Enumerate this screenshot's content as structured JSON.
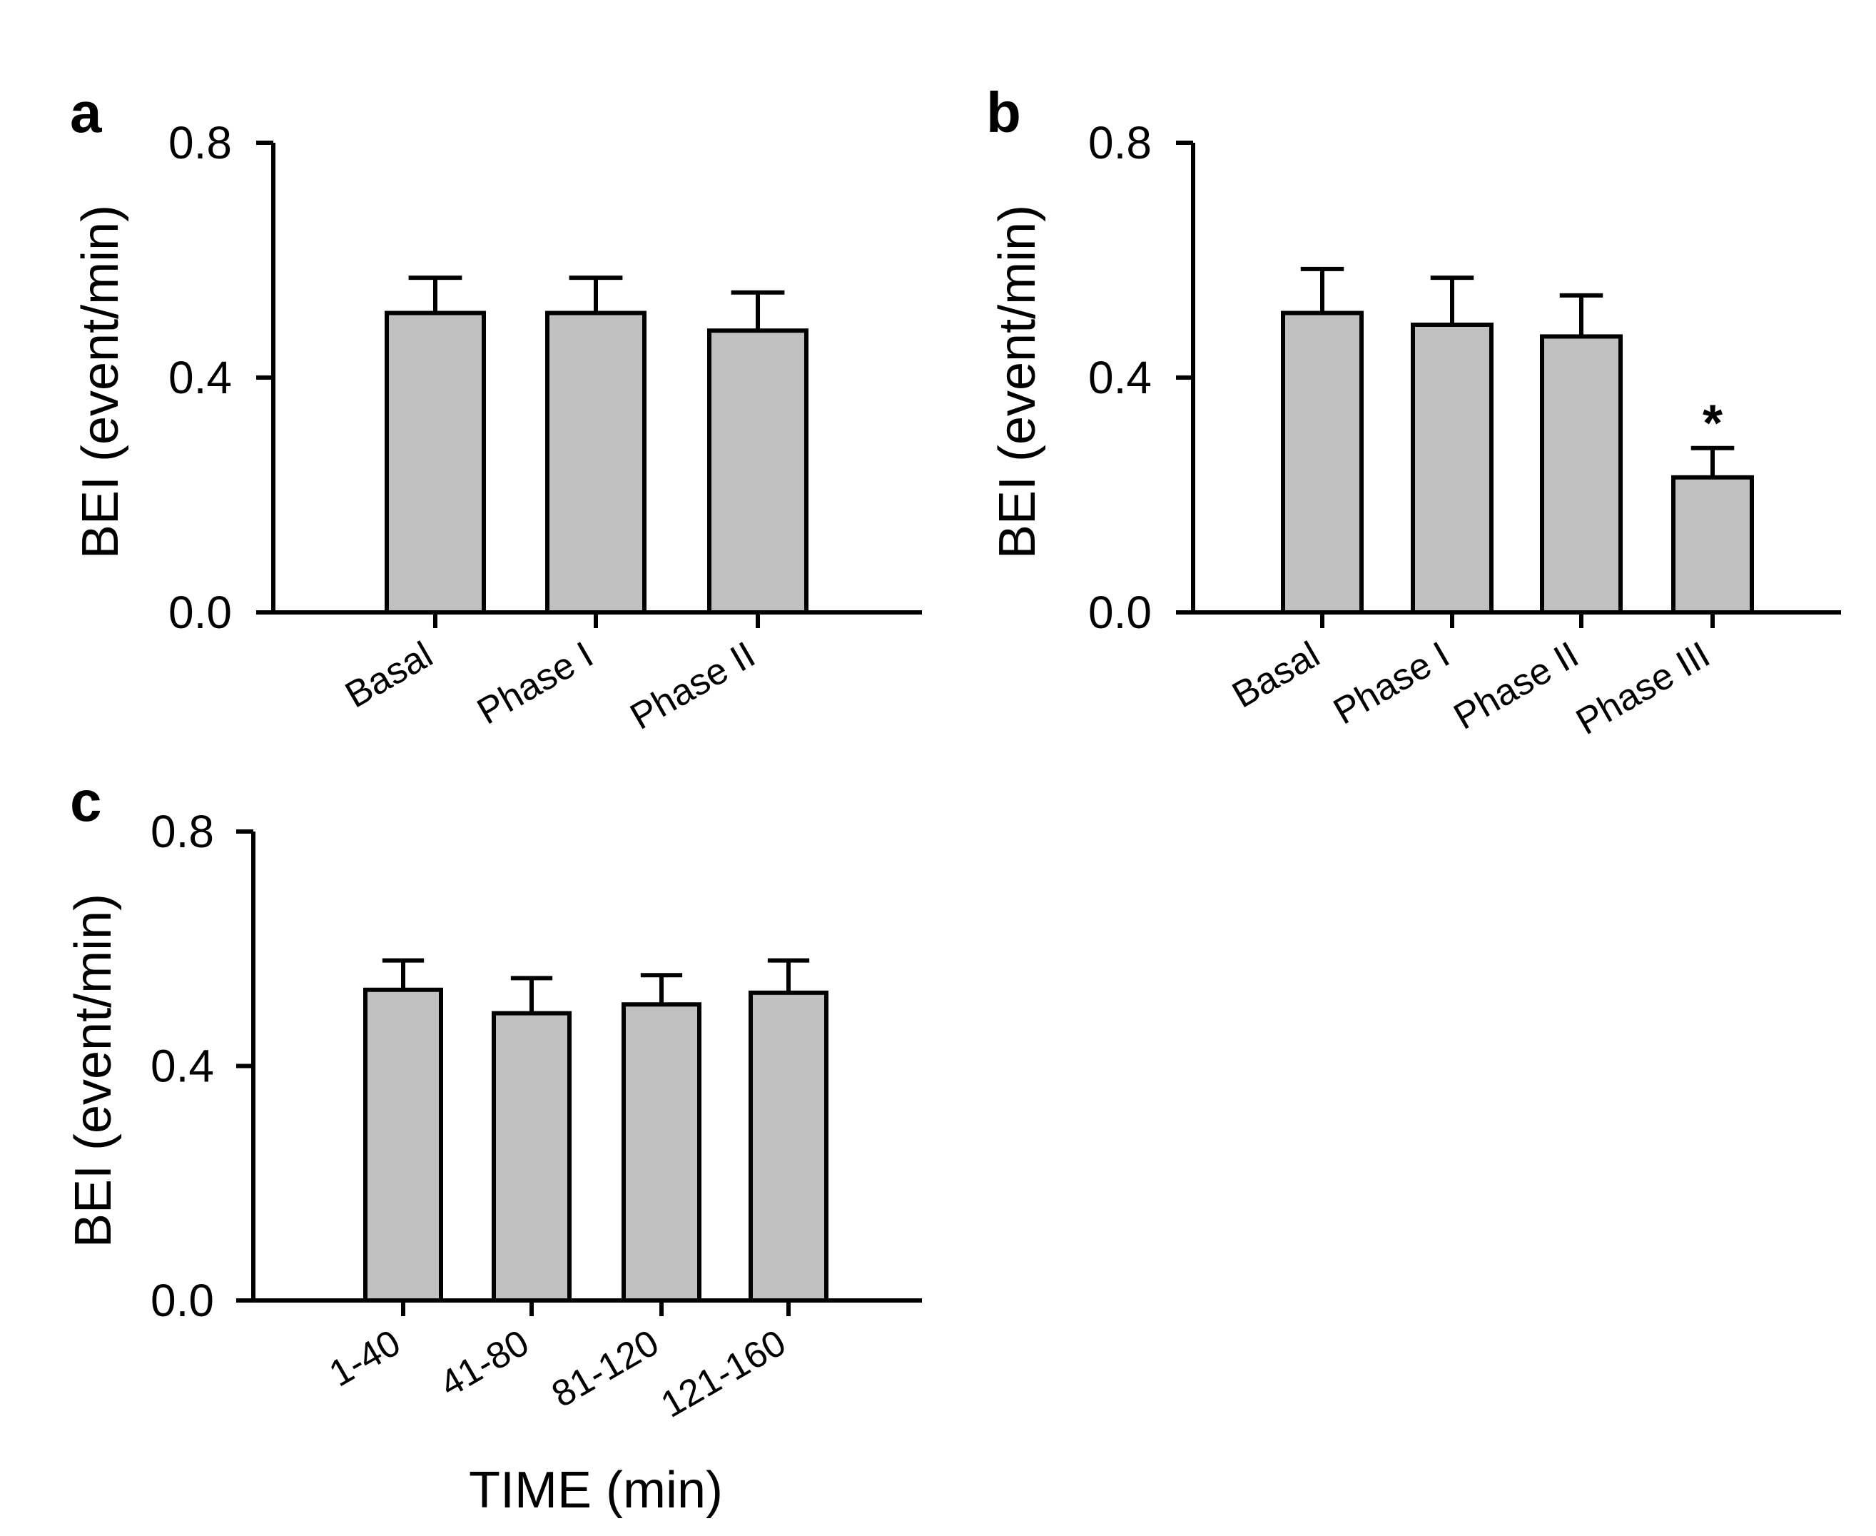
{
  "chart_data": [
    {
      "type": "bar",
      "panel": "a",
      "categories": [
        "Basal",
        "Phase I",
        "Phase II"
      ],
      "values": [
        0.51,
        0.51,
        0.48
      ],
      "errors": [
        0.06,
        0.06,
        0.065
      ],
      "significance": [
        "",
        "",
        ""
      ],
      "ylabel": "BEI (event/min)",
      "xlabel": "",
      "yticks": [
        "0.0",
        "0.4",
        "0.8"
      ],
      "ylim": [
        0,
        0.8
      ]
    },
    {
      "type": "bar",
      "panel": "b",
      "categories": [
        "Basal",
        "Phase I",
        "Phase II",
        "Phase III"
      ],
      "values": [
        0.51,
        0.49,
        0.47,
        0.23
      ],
      "errors": [
        0.075,
        0.08,
        0.07,
        0.05
      ],
      "significance": [
        "",
        "",
        "",
        "*"
      ],
      "ylabel": "BEI (event/min)",
      "xlabel": "",
      "yticks": [
        "0.0",
        "0.4",
        "0.8"
      ],
      "ylim": [
        0,
        0.8
      ]
    },
    {
      "type": "bar",
      "panel": "c",
      "categories": [
        "1-40",
        "41-80",
        "81-120",
        "121-160"
      ],
      "values": [
        0.53,
        0.49,
        0.505,
        0.525
      ],
      "errors": [
        0.05,
        0.06,
        0.05,
        0.055
      ],
      "significance": [
        "",
        "",
        "",
        ""
      ],
      "ylabel": "BEI (event/min)",
      "xlabel": "TIME (min)",
      "yticks": [
        "0.0",
        "0.4",
        "0.8"
      ],
      "ylim": [
        0,
        0.8
      ]
    }
  ]
}
